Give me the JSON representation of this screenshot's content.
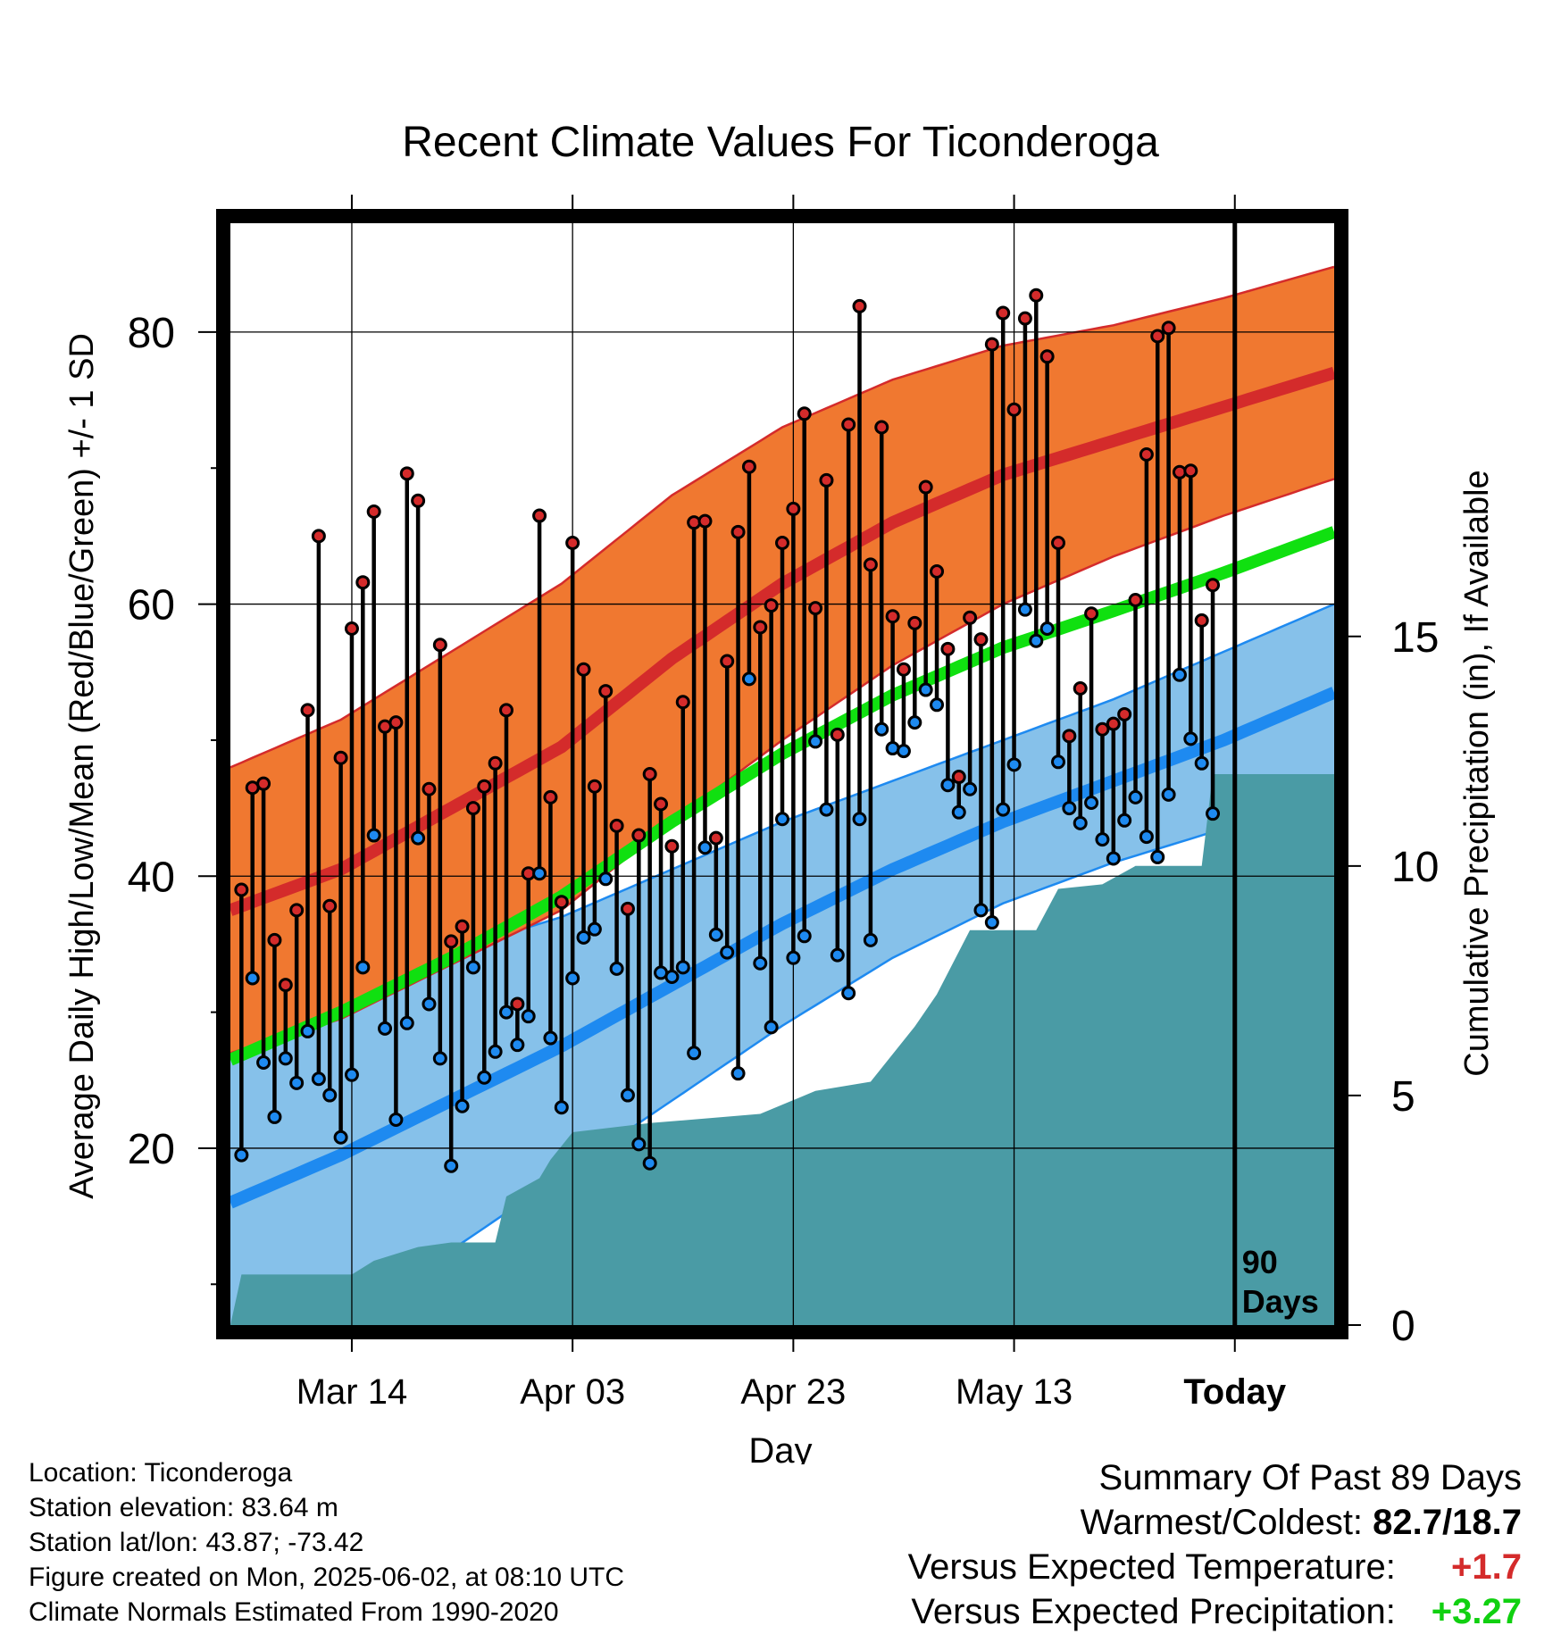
{
  "colors": {
    "high": "#D42B2B",
    "high_band": "#F07830",
    "low": "#1E8AF0",
    "low_band": "#86C1EA",
    "mean": "#10E010",
    "precip": "#4A9BA5",
    "above_expected": "#D42B2B",
    "precip_positive": "#10D010"
  },
  "chart_data": {
    "type": "line",
    "title": "Recent Climate Values For Ticonderoga",
    "xlabel": "Day",
    "ylabel": "Average Daily High/Low/Mean (Red/Blue/Green) +/- 1 SD",
    "y2label": "Cumulative Precipitation (in), If Available",
    "x_tick_labels": [
      "Mar 14",
      "Apr 03",
      "Apr 23",
      "May 13",
      "Today"
    ],
    "x_tick_days": [
      11,
      31,
      51,
      71,
      91
    ],
    "xlim": [
      0,
      100
    ],
    "ylim": [
      7,
      88
    ],
    "y_ticks": [
      20,
      40,
      60,
      80
    ],
    "y2lim": [
      0,
      24
    ],
    "y2_ticks": [
      0,
      5,
      10,
      15
    ],
    "grid": true,
    "today_marker": {
      "day": 91,
      "label_line1": "90",
      "label_line2": "Days"
    },
    "normals": {
      "days": [
        0,
        10,
        20,
        30,
        40,
        50,
        60,
        70,
        80,
        90,
        100
      ],
      "high_mean": [
        37.5,
        40.5,
        45,
        49.5,
        56,
        61.5,
        66,
        69.5,
        72,
        74.5,
        77
      ],
      "high_sd": [
        10.5,
        11,
        11.5,
        12,
        12,
        11.5,
        10.5,
        9.5,
        8.5,
        8,
        7.8
      ],
      "low_mean": [
        16,
        19.5,
        23.5,
        27.5,
        32,
        36.5,
        40.5,
        44,
        47,
        50,
        53.5
      ],
      "low_sd": [
        12,
        12,
        11,
        9.5,
        8.5,
        7.5,
        6.5,
        6,
        6,
        6.5,
        6.5
      ],
      "mean": [
        26.5,
        30,
        34,
        38.5,
        44,
        49,
        53.3,
        56.8,
        59.5,
        62.3,
        65.3
      ]
    },
    "series": [
      {
        "name": "High",
        "values": [
          39,
          46.5,
          46.8,
          35.3,
          32,
          37.5,
          52.2,
          65,
          37.8,
          48.7,
          58.2,
          61.6,
          66.8,
          51,
          51.3,
          69.6,
          67.6,
          46.4,
          57,
          35.2,
          36.3,
          45,
          46.6,
          48.3,
          52.2,
          30.6,
          40.2,
          66.5,
          45.8,
          38.1,
          64.5,
          55.2,
          46.6,
          53.6,
          43.7,
          37.6,
          43,
          47.5,
          45.3,
          42.2,
          52.8,
          66,
          66.1,
          42.8,
          55.8,
          65.3,
          70.1,
          58.3,
          59.9,
          64.5,
          67,
          74,
          59.7,
          69.1,
          50.4,
          73.2,
          81.9,
          62.9,
          73,
          59.1,
          55.2,
          58.6,
          68.6,
          62.4,
          56.7,
          47.3,
          59,
          57.4,
          79.1,
          81.4,
          74.3,
          81,
          82.7,
          78.2,
          64.5,
          50.3,
          53.8,
          59.3,
          50.8,
          51.2,
          51.9,
          60.3,
          71,
          79.7,
          80.3,
          69.7,
          69.8,
          58.8,
          61.4
        ]
      },
      {
        "name": "Low",
        "values": [
          19.5,
          32.5,
          26.3,
          22.3,
          26.6,
          24.8,
          28.6,
          25.1,
          23.9,
          20.8,
          25.4,
          33.3,
          43,
          28.8,
          22.1,
          29.2,
          42.8,
          30.6,
          26.6,
          18.7,
          23.1,
          33.3,
          25.2,
          27.1,
          30,
          27.6,
          29.7,
          40.2,
          28.1,
          23,
          32.5,
          35.5,
          36.1,
          39.8,
          33.2,
          23.9,
          20.3,
          18.9,
          32.9,
          32.6,
          33.3,
          27,
          42.1,
          35.7,
          34.4,
          25.5,
          54.5,
          33.6,
          28.9,
          44.2,
          34,
          35.6,
          49.9,
          44.9,
          34.2,
          31.4,
          44.2,
          35.3,
          50.8,
          49.4,
          49.2,
          51.3,
          53.7,
          52.6,
          46.7,
          44.7,
          46.4,
          37.5,
          36.6,
          44.9,
          48.2,
          59.6,
          57.3,
          58.2,
          48.4,
          45,
          43.9,
          45.4,
          42.7,
          41.3,
          44.1,
          45.8,
          42.9,
          41.4,
          46,
          54.8,
          50.1,
          48.3,
          44.6
        ]
      }
    ],
    "precip_steps": {
      "days": [
        0,
        1,
        11,
        13,
        17,
        20,
        24,
        25,
        28,
        29,
        31,
        38,
        48,
        53,
        58,
        62,
        64,
        67,
        73,
        75,
        79,
        82,
        88,
        89,
        100
      ],
      "values": [
        0,
        1.1,
        1.1,
        1.4,
        1.7,
        1.8,
        1.8,
        2.8,
        3.2,
        3.6,
        4.2,
        4.4,
        4.6,
        5.1,
        5.3,
        6.5,
        7.2,
        8.6,
        8.6,
        9.5,
        9.6,
        10.0,
        10.0,
        12.0,
        12.0
      ]
    }
  },
  "info": {
    "location": "Location: Ticonderoga",
    "elevation": "Station elevation: 83.64 m",
    "latlon": "Station lat/lon: 43.87; -73.42",
    "created": "Figure created on Mon, 2025-06-02, at 08:10 UTC",
    "normals": "Climate Normals Estimated From 1990-2020"
  },
  "summary": {
    "heading": "Summary Of Past 89 Days",
    "warmest_label": "Warmest/Coldest:",
    "warmest_value": "82.7/18.7",
    "temp_label": "Versus Expected Temperature:",
    "temp_value": "+1.7",
    "precip_label": "Versus Expected Precipitation:",
    "precip_value": "+3.27"
  }
}
